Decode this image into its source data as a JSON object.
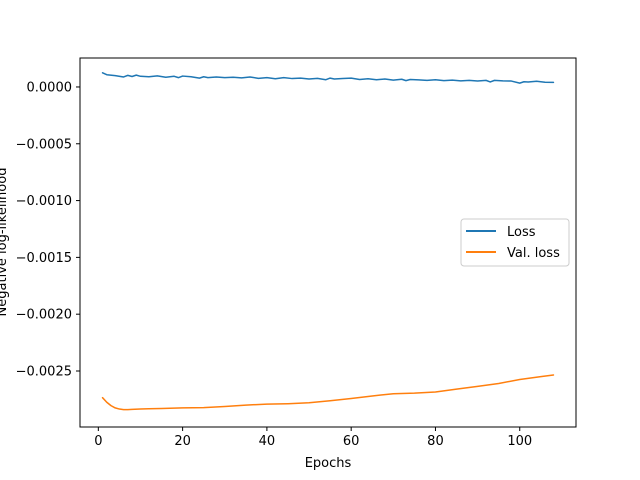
{
  "chart_data": {
    "type": "line",
    "title": "",
    "xlabel": "Epochs",
    "ylabel": "Negative log-likelihood",
    "xlim": [
      -4.35,
      113.35
    ],
    "ylim": [
      -0.002993,
      0.000255
    ],
    "x_ticks": [
      {
        "value": 0,
        "label": "0"
      },
      {
        "value": 20,
        "label": "20"
      },
      {
        "value": 40,
        "label": "40"
      },
      {
        "value": 60,
        "label": "60"
      },
      {
        "value": 80,
        "label": "80"
      },
      {
        "value": 100,
        "label": "100"
      }
    ],
    "y_ticks": [
      {
        "value": 0.0,
        "label": "0.0000"
      },
      {
        "value": -0.0005,
        "label": "−0.0005"
      },
      {
        "value": -0.001,
        "label": "−0.0010"
      },
      {
        "value": -0.0015,
        "label": "−0.0015"
      },
      {
        "value": -0.002,
        "label": "−0.0020"
      },
      {
        "value": -0.0025,
        "label": "−0.0025"
      }
    ],
    "grid": false,
    "legend_position": "center-right",
    "series": [
      {
        "name": "Loss",
        "color": "#1f77b4",
        "x": [
          1,
          2,
          4,
          6,
          7,
          8,
          9,
          10,
          12,
          14,
          16,
          18,
          19,
          20,
          22,
          24,
          25,
          26,
          28,
          30,
          32,
          34,
          36,
          38,
          40,
          42,
          44,
          46,
          48,
          50,
          52,
          54,
          55,
          56,
          58,
          60,
          62,
          64,
          66,
          68,
          70,
          72,
          73,
          74,
          76,
          78,
          80,
          82,
          84,
          86,
          88,
          90,
          92,
          93,
          94,
          96,
          98,
          100,
          101,
          102,
          104,
          106,
          108
        ],
        "y": [
          0.000125,
          0.000108,
          0.0001,
          8.8e-05,
          0.000102,
          9.2e-05,
          0.000104,
          9.4e-05,
          9e-05,
          9.8e-05,
          8.6e-05,
          9.4e-05,
          8.2e-05,
          9.6e-05,
          9e-05,
          7.8e-05,
          9e-05,
          8.2e-05,
          8.8e-05,
          8.2e-05,
          8.6e-05,
          8e-05,
          8.8e-05,
          7.6e-05,
          8.2e-05,
          7.2e-05,
          8.2e-05,
          7.4e-05,
          7.8e-05,
          7e-05,
          7.6e-05,
          6.4e-05,
          7.8e-05,
          7e-05,
          7.4e-05,
          7.8e-05,
          6.6e-05,
          7.2e-05,
          6.4e-05,
          7e-05,
          6e-05,
          6.8e-05,
          5.6e-05,
          6.6e-05,
          6.2e-05,
          5.8e-05,
          6.4e-05,
          5.6e-05,
          6e-05,
          5.4e-05,
          5.8e-05,
          5.2e-05,
          5.8e-05,
          4.4e-05,
          5.8e-05,
          5.4e-05,
          5.2e-05,
          3.4e-05,
          4.6e-05,
          4.4e-05,
          5e-05,
          4.2e-05,
          4e-05
        ]
      },
      {
        "name": "Val. loss",
        "color": "#ff7f0e",
        "x": [
          1,
          2,
          3,
          4,
          5,
          6,
          7,
          8,
          10,
          12,
          15,
          20,
          25,
          30,
          35,
          40,
          45,
          50,
          55,
          60,
          65,
          70,
          75,
          80,
          85,
          90,
          95,
          100,
          105,
          108
        ],
        "y": [
          -0.002735,
          -0.002775,
          -0.002805,
          -0.002825,
          -0.002835,
          -0.00284,
          -0.00284,
          -0.002838,
          -0.002835,
          -0.002832,
          -0.00283,
          -0.002825,
          -0.002822,
          -0.002812,
          -0.0028,
          -0.002792,
          -0.002788,
          -0.00278,
          -0.002762,
          -0.002742,
          -0.00272,
          -0.0027,
          -0.002695,
          -0.002685,
          -0.00266,
          -0.002635,
          -0.00261,
          -0.002575,
          -0.00255,
          -0.002535
        ]
      }
    ]
  }
}
